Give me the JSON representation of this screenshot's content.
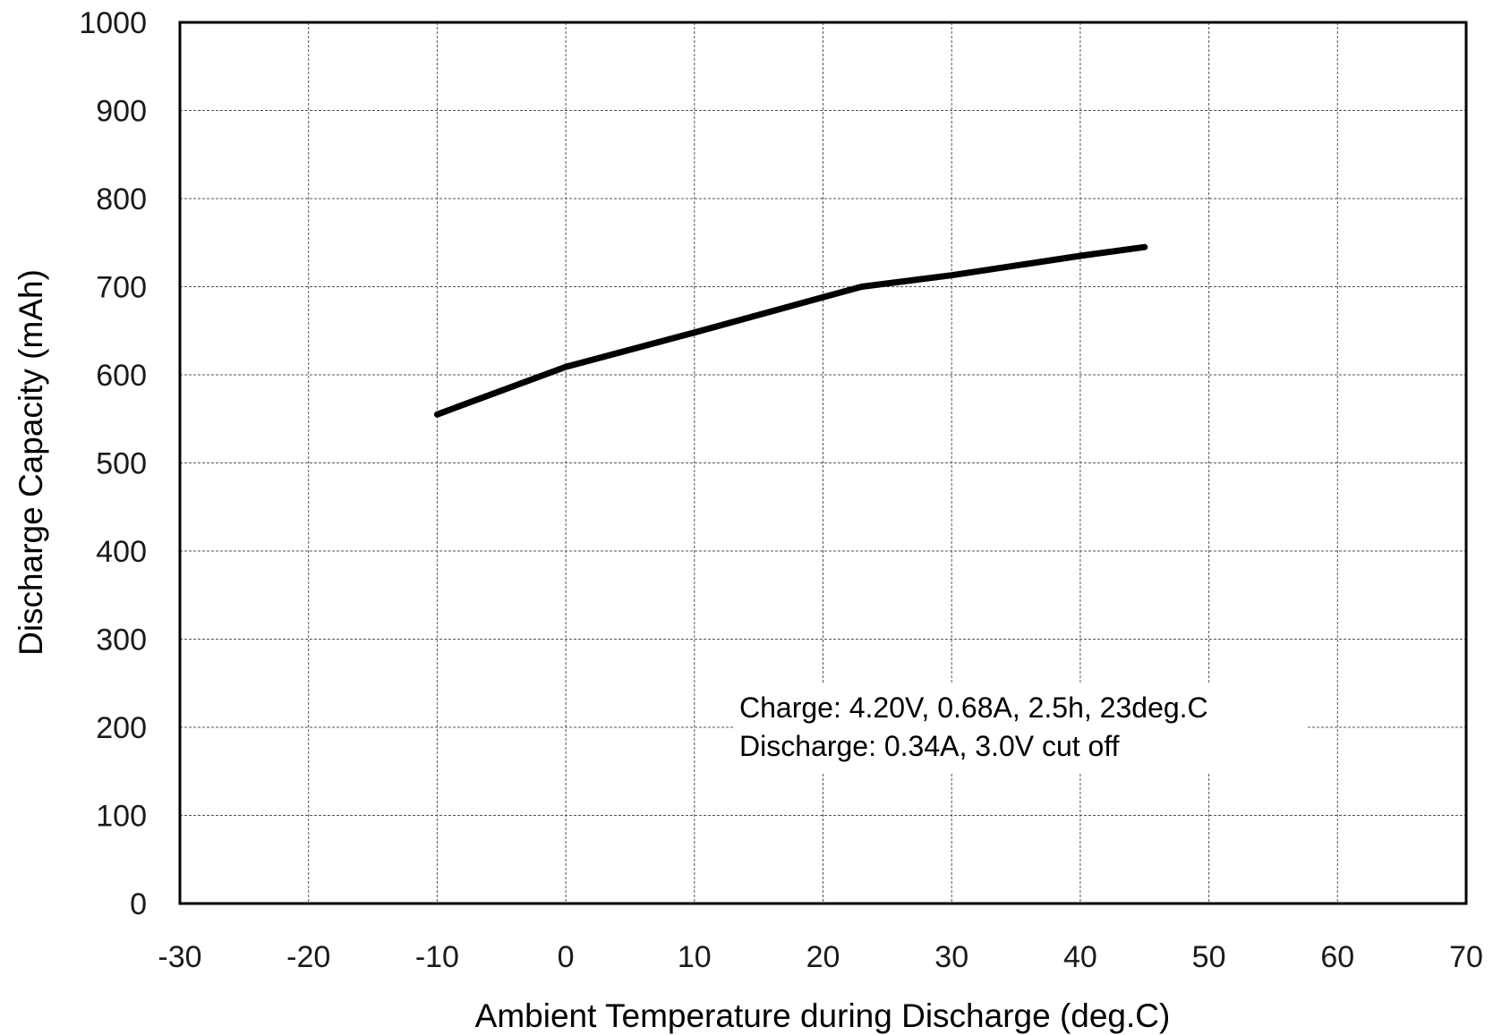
{
  "chart_data": {
    "type": "line",
    "title": "",
    "xlabel": "Ambient Temperature during Discharge (deg.C)",
    "ylabel": "Discharge Capacity (mAh)",
    "xlim": [
      -30,
      70
    ],
    "ylim": [
      0,
      1000
    ],
    "x_ticks": [
      "-30",
      "-20",
      "-10",
      "0",
      "10",
      "20",
      "30",
      "40",
      "50",
      "60",
      "70"
    ],
    "y_ticks": [
      "0",
      "100",
      "200",
      "300",
      "400",
      "500",
      "600",
      "700",
      "800",
      "900",
      "1000"
    ],
    "grid": true,
    "series": [
      {
        "x": [
          -10,
          0,
          10,
          20,
          23,
          30,
          40,
          45
        ],
        "y": [
          555,
          609,
          648,
          688,
          700,
          713,
          735,
          745
        ],
        "color": "#000000"
      }
    ],
    "annotations": [
      "Charge: 4.20V, 0.68A, 2.5h, 23deg.C",
      "Discharge: 0.34A, 3.0V cut off"
    ]
  }
}
